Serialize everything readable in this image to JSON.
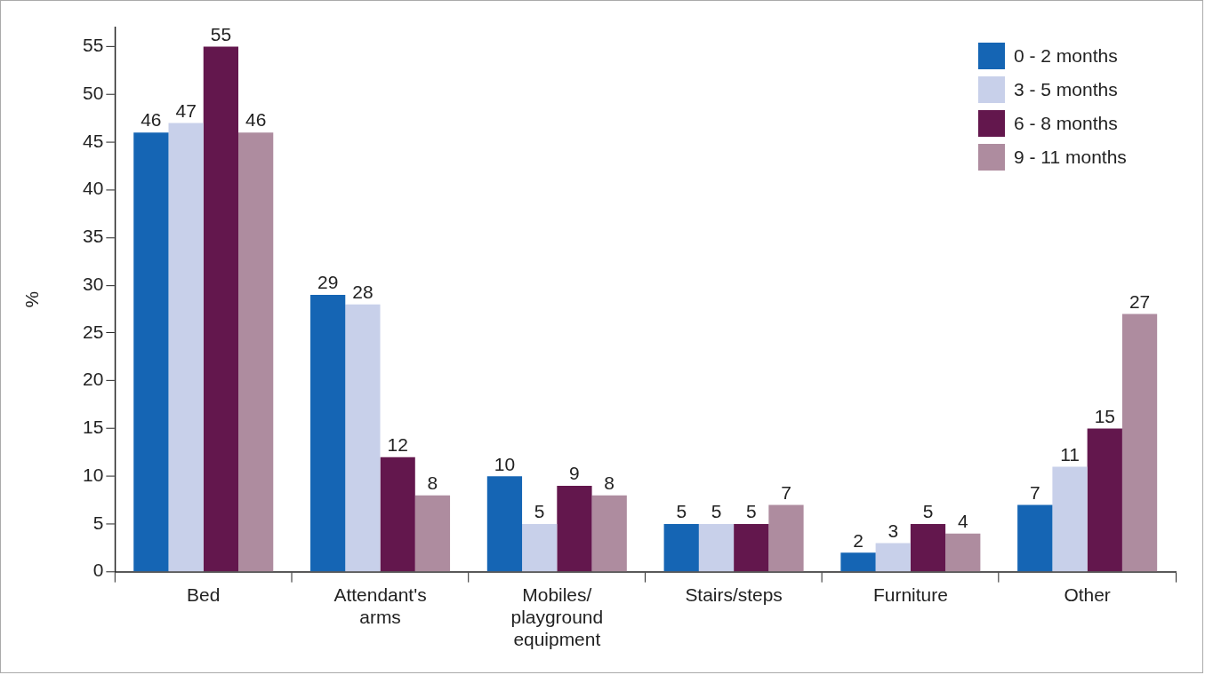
{
  "chart_data": {
    "type": "bar",
    "ylabel": "%",
    "categories": [
      "Bed",
      "Attendant's arms",
      "Mobiles/ playground equipment",
      "Stairs/steps",
      "Furniture",
      "Other"
    ],
    "series": [
      {
        "name": "0 - 2 months",
        "color": "#1565b4",
        "values": [
          46,
          29,
          10,
          5,
          2,
          7
        ]
      },
      {
        "name": "3 - 5 months",
        "color": "#c8d0ea",
        "values": [
          47,
          28,
          5,
          5,
          3,
          11
        ]
      },
      {
        "name": "6 - 8 months",
        "color": "#63174d",
        "values": [
          55,
          12,
          9,
          5,
          5,
          15
        ]
      },
      {
        "name": "9 - 11 months",
        "color": "#ae8c9f",
        "values": [
          46,
          8,
          8,
          7,
          4,
          27
        ]
      }
    ],
    "ylim": [
      0,
      57
    ],
    "yticks": [
      0,
      5,
      10,
      15,
      20,
      25,
      30,
      35,
      40,
      45,
      50,
      55
    ],
    "data_labels": true,
    "legend": "top right",
    "grid": false
  }
}
